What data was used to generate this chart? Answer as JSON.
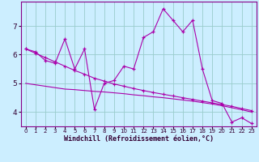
{
  "xlabel": "Windchill (Refroidissement éolien,°C)",
  "background_color": "#cceeff",
  "grid_color": "#99cccc",
  "line_color": "#aa00aa",
  "x": [
    0,
    1,
    2,
    3,
    4,
    5,
    6,
    7,
    8,
    9,
    10,
    11,
    12,
    13,
    14,
    15,
    16,
    17,
    18,
    19,
    20,
    21,
    22,
    23
  ],
  "series1": [
    6.2,
    6.1,
    5.8,
    5.7,
    6.55,
    5.5,
    6.2,
    4.1,
    5.0,
    5.1,
    5.6,
    5.5,
    6.6,
    6.8,
    7.6,
    7.2,
    6.8,
    7.2,
    5.5,
    4.4,
    4.3,
    3.65,
    3.8,
    3.6
  ],
  "trend1": [
    6.2,
    6.05,
    5.9,
    5.75,
    5.6,
    5.45,
    5.32,
    5.18,
    5.08,
    4.98,
    4.9,
    4.82,
    4.75,
    4.68,
    4.62,
    4.56,
    4.5,
    4.44,
    4.38,
    4.32,
    4.26,
    4.2,
    4.12,
    4.05
  ],
  "trend2": [
    5.0,
    4.95,
    4.9,
    4.85,
    4.8,
    4.78,
    4.75,
    4.72,
    4.7,
    4.67,
    4.64,
    4.6,
    4.57,
    4.53,
    4.5,
    4.46,
    4.42,
    4.38,
    4.33,
    4.28,
    4.22,
    4.15,
    4.08,
    4.0
  ],
  "xlim": [
    -0.5,
    23.5
  ],
  "ylim": [
    3.5,
    7.85
  ],
  "yticks": [
    4,
    5,
    6,
    7
  ],
  "xticks": [
    0,
    1,
    2,
    3,
    4,
    5,
    6,
    7,
    8,
    9,
    10,
    11,
    12,
    13,
    14,
    15,
    16,
    17,
    18,
    19,
    20,
    21,
    22,
    23
  ]
}
